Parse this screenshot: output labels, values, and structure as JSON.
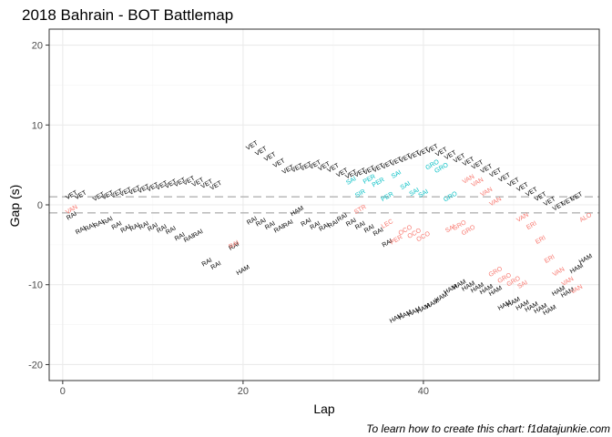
{
  "chart_data": {
    "type": "scatter",
    "title": "2018 Bahrain - BOT Battlemap",
    "xlabel": "Lap",
    "ylabel": "Gap (s)",
    "caption": "To learn how to create this chart: f1datajunkie.com",
    "xlim": [
      -1.5,
      59.5
    ],
    "ylim": [
      -22,
      22
    ],
    "x_ticks": [
      0,
      20,
      40
    ],
    "y_ticks": [
      -20,
      -10,
      0,
      10,
      20
    ],
    "grid": true,
    "reference_lines": [
      1,
      -1
    ],
    "colors": {
      "black": "#000000",
      "red": "#f8766d",
      "cyan": "#00bfc4",
      "grid_major": "#ebebeb",
      "grid_minor": "#f5f5f5",
      "ref_line": "#b3b3b3",
      "border": "#333333"
    },
    "series": [
      {
        "color": "black",
        "points": [
          [
            1,
            1.2,
            "VET"
          ],
          [
            2,
            1.2,
            "VET"
          ],
          [
            4,
            1.0,
            "VET"
          ],
          [
            5,
            1.2,
            "VET"
          ],
          [
            6,
            1.4,
            "VET"
          ],
          [
            7,
            1.6,
            "VET"
          ],
          [
            8,
            1.8,
            "VET"
          ],
          [
            9,
            2.0,
            "VET"
          ],
          [
            10,
            2.2,
            "VET"
          ],
          [
            11,
            2.4,
            "VET"
          ],
          [
            12,
            2.6,
            "VET"
          ],
          [
            13,
            2.8,
            "VET"
          ],
          [
            14,
            3.0,
            "VET"
          ],
          [
            15,
            2.8,
            "VET"
          ],
          [
            16,
            2.6,
            "VET"
          ],
          [
            17,
            2.4,
            "VET"
          ],
          [
            21,
            7.4,
            "VET"
          ],
          [
            22,
            6.7,
            "VET"
          ],
          [
            23,
            6.0,
            "VET"
          ],
          [
            24,
            5.2,
            "VET"
          ],
          [
            25,
            4.4,
            "VET"
          ],
          [
            26,
            4.6,
            "VET"
          ],
          [
            27,
            4.8,
            "VET"
          ],
          [
            28,
            5.0,
            "VET"
          ],
          [
            29,
            4.8,
            "VET"
          ],
          [
            30,
            4.6,
            "VET"
          ],
          [
            31,
            4.0,
            "VET"
          ],
          [
            32,
            3.8,
            "VET"
          ],
          [
            33,
            4.0,
            "VET"
          ],
          [
            34,
            4.3,
            "VET"
          ],
          [
            35,
            4.6,
            "VET"
          ],
          [
            36,
            5.0,
            "VET"
          ],
          [
            37,
            5.4,
            "VET"
          ],
          [
            38,
            5.8,
            "VET"
          ],
          [
            39,
            6.2,
            "VET"
          ],
          [
            40,
            6.6,
            "VET"
          ],
          [
            41,
            7.0,
            "VET"
          ],
          [
            42,
            6.6,
            "VET"
          ],
          [
            43,
            6.2,
            "VET"
          ],
          [
            44,
            5.8,
            "VET"
          ],
          [
            45,
            5.4,
            "VET"
          ],
          [
            46,
            5.0,
            "VET"
          ],
          [
            47,
            4.5,
            "VET"
          ],
          [
            48,
            4.0,
            "VET"
          ],
          [
            49,
            3.4,
            "VET"
          ],
          [
            50,
            2.8,
            "VET"
          ],
          [
            51,
            2.2,
            "VET"
          ],
          [
            52,
            1.6,
            "VET"
          ],
          [
            53,
            1.0,
            "VET"
          ],
          [
            54,
            0.4,
            "VET"
          ],
          [
            55,
            -0.2,
            "VET"
          ],
          [
            56,
            0.4,
            "VET"
          ],
          [
            57,
            1.0,
            "VET"
          ],
          [
            1,
            -1.4,
            "RAI"
          ],
          [
            2,
            -3.2,
            "RAI"
          ],
          [
            3,
            -2.8,
            "RAI"
          ],
          [
            4,
            -2.4,
            "RAI"
          ],
          [
            5,
            -2.0,
            "RAI"
          ],
          [
            6,
            -2.6,
            "RAI"
          ],
          [
            7,
            -3.0,
            "RAI"
          ],
          [
            8,
            -2.8,
            "RAI"
          ],
          [
            9,
            -2.6,
            "RAI"
          ],
          [
            10,
            -2.8,
            "RAI"
          ],
          [
            11,
            -3.0,
            "RAI"
          ],
          [
            12,
            -3.2,
            "RAI"
          ],
          [
            13,
            -4.0,
            "RAI"
          ],
          [
            14,
            -4.2,
            "RAI"
          ],
          [
            15,
            -3.6,
            "RAI"
          ],
          [
            16,
            -7.2,
            "RAI"
          ],
          [
            17,
            -7.6,
            "RAI"
          ],
          [
            19,
            -5.2,
            "RAI"
          ],
          [
            21,
            -2.0,
            "RAI"
          ],
          [
            22,
            -2.2,
            "RAI"
          ],
          [
            23,
            -2.6,
            "RAI"
          ],
          [
            24,
            -3.0,
            "RAI"
          ],
          [
            25,
            -2.4,
            "RAI"
          ],
          [
            27,
            -2.2,
            "RAI"
          ],
          [
            28,
            -2.6,
            "RAI"
          ],
          [
            29,
            -2.8,
            "RAI"
          ],
          [
            30,
            -2.4,
            "RAI"
          ],
          [
            31,
            -1.6,
            "RAI"
          ],
          [
            32,
            -2.2,
            "RAI"
          ],
          [
            33,
            -2.6,
            "RAI"
          ],
          [
            34,
            -3.0,
            "RAI"
          ],
          [
            35,
            -3.4,
            "RAI"
          ],
          [
            36,
            -4.8,
            "RAI"
          ],
          [
            26,
            -0.8,
            "HAM"
          ],
          [
            20,
            -8.2,
            "HAM"
          ],
          [
            37,
            -14.2,
            "HAM"
          ],
          [
            38,
            -13.8,
            "HAM"
          ],
          [
            39,
            -13.4,
            "HAM"
          ],
          [
            40,
            -13.0,
            "HAM"
          ],
          [
            41,
            -12.4,
            "HAM"
          ],
          [
            42,
            -11.6,
            "HAM"
          ],
          [
            43,
            -10.6,
            "HAM"
          ],
          [
            44,
            -10.0,
            "HAM"
          ],
          [
            45,
            -10.2,
            "HAM"
          ],
          [
            46,
            -10.4,
            "HAM"
          ],
          [
            47,
            -10.6,
            "HAM"
          ],
          [
            48,
            -10.8,
            "HAM"
          ],
          [
            49,
            -12.6,
            "HAM"
          ],
          [
            50,
            -12.2,
            "HAM"
          ],
          [
            51,
            -12.6,
            "HAM"
          ],
          [
            52,
            -12.8,
            "HAM"
          ],
          [
            53,
            -13.0,
            "HAM"
          ],
          [
            54,
            -13.2,
            "HAM"
          ],
          [
            55,
            -10.8,
            "HAM"
          ],
          [
            56,
            -11.0,
            "HAM"
          ],
          [
            57,
            -8.0,
            "HAM"
          ],
          [
            58,
            -6.8,
            "HAM"
          ]
        ]
      },
      {
        "color": "red",
        "points": [
          [
            1,
            -0.6,
            "VAN"
          ],
          [
            19,
            -5.0,
            "RAI"
          ],
          [
            33,
            -0.6,
            "STR"
          ],
          [
            36,
            -2.4,
            "LEC"
          ],
          [
            37,
            -4.4,
            "PER"
          ],
          [
            38,
            -3.2,
            "OCO"
          ],
          [
            39,
            -3.6,
            "OCO"
          ],
          [
            40,
            -4.0,
            "OCO"
          ],
          [
            43,
            -3.0,
            "SAI"
          ],
          [
            44,
            -2.6,
            "GRO"
          ],
          [
            45,
            -3.2,
            "GRO"
          ],
          [
            45,
            3.2,
            "VAN"
          ],
          [
            46,
            2.8,
            "VAN"
          ],
          [
            47,
            1.6,
            "VAN"
          ],
          [
            48,
            0.4,
            "VAN"
          ],
          [
            48,
            -8.4,
            "GRO"
          ],
          [
            49,
            -9.2,
            "GRO"
          ],
          [
            50,
            -9.6,
            "GRO"
          ],
          [
            51,
            -10.0,
            "SAI"
          ],
          [
            51,
            -1.6,
            "VAN"
          ],
          [
            52,
            -2.6,
            "ERI"
          ],
          [
            53,
            -4.4,
            "ERI"
          ],
          [
            54,
            -6.8,
            "ERI"
          ],
          [
            55,
            -8.4,
            "VAN"
          ],
          [
            56,
            -9.6,
            "VAN"
          ],
          [
            57,
            -10.6,
            "VAN"
          ],
          [
            58,
            -1.6,
            "ALO"
          ]
        ]
      },
      {
        "color": "cyan",
        "points": [
          [
            32,
            3.0,
            "SAI"
          ],
          [
            33,
            1.4,
            "SIR"
          ],
          [
            34,
            3.2,
            "PER"
          ],
          [
            35,
            2.8,
            "PER"
          ],
          [
            36,
            1.0,
            "PER"
          ],
          [
            37,
            3.8,
            "SAI"
          ],
          [
            38,
            2.4,
            "SAI"
          ],
          [
            39,
            1.6,
            "SAI"
          ],
          [
            40,
            1.4,
            "SAI"
          ],
          [
            41,
            5.0,
            "GRO"
          ],
          [
            42,
            4.6,
            "GRO"
          ],
          [
            43,
            1.0,
            "GRO"
          ]
        ]
      }
    ]
  }
}
